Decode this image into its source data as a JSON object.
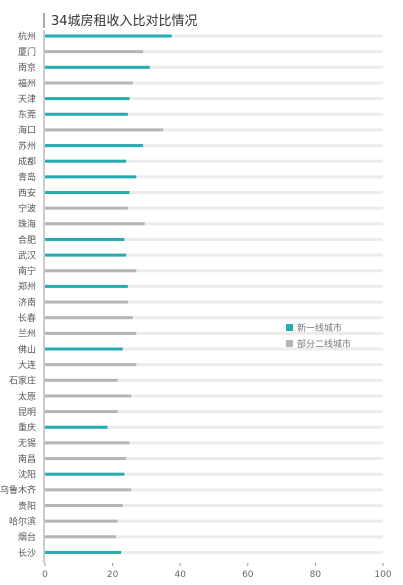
{
  "chart_data": {
    "type": "bar",
    "orientation": "horizontal",
    "title": "34城房租收入比对比情况",
    "xlabel": "",
    "ylabel": "",
    "xlim": [
      0,
      100
    ],
    "x_ticks": [
      0,
      20,
      40,
      60,
      80,
      100
    ],
    "grid": true,
    "legend_position": "right-middle",
    "categories": [
      "杭州",
      "厦门",
      "南京",
      "福州",
      "天津",
      "东莞",
      "海口",
      "苏州",
      "成都",
      "青岛",
      "西安",
      "宁波",
      "珠海",
      "合肥",
      "武汉",
      "南宁",
      "郑州",
      "济南",
      "长春",
      "兰州",
      "佛山",
      "大连",
      "石家庄",
      "太原",
      "昆明",
      "重庆",
      "无锡",
      "南昌",
      "沈阳",
      "乌鲁木齐",
      "贵阳",
      "哈尔滨",
      "烟台",
      "长沙"
    ],
    "values": [
      37.5,
      29.0,
      31.0,
      26.0,
      25.0,
      24.5,
      35.0,
      29.0,
      24.0,
      27.0,
      25.0,
      24.5,
      29.5,
      23.5,
      24.0,
      27.0,
      24.5,
      24.5,
      26.0,
      27.0,
      23.0,
      27.0,
      21.5,
      25.5,
      21.5,
      18.5,
      25.0,
      24.0,
      23.5,
      25.5,
      23.0,
      21.5,
      21.0,
      22.5
    ],
    "groups": [
      "tier1",
      "tier2",
      "tier1",
      "tier2",
      "tier1",
      "tier1",
      "tier2",
      "tier1",
      "tier1",
      "tier1",
      "tier1",
      "tier2",
      "tier2",
      "tier1",
      "tier1",
      "tier2",
      "tier1",
      "tier2",
      "tier2",
      "tier2",
      "tier1",
      "tier2",
      "tier2",
      "tier2",
      "tier2",
      "tier1",
      "tier2",
      "tier2",
      "tier1",
      "tier2",
      "tier2",
      "tier2",
      "tier2",
      "tier1"
    ],
    "series": [
      {
        "key": "tier1",
        "name": "新一线城市",
        "color": "#26abb0"
      },
      {
        "key": "tier2",
        "name": "部分二线城市",
        "color": "#b5b5b5"
      }
    ]
  }
}
